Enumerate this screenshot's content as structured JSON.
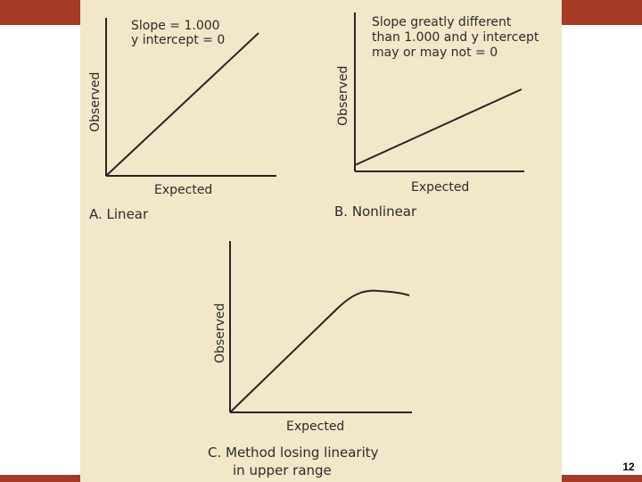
{
  "colors": {
    "accent": "#a53a25",
    "paper": "#f2e7c9",
    "ink": "#262626"
  },
  "page": {
    "number": "12"
  },
  "panels": [
    {
      "id": "A",
      "note_lines": [
        "Slope = 1.000",
        "y intercept = 0"
      ],
      "x_label": "Expected",
      "y_label": "Observed",
      "caption": "A.  Linear"
    },
    {
      "id": "B",
      "note_lines": [
        "Slope greatly different",
        "than 1.000 and y intercept",
        "may or may not = 0"
      ],
      "x_label": "Expected",
      "y_label": "Observed",
      "caption": "B.  Nonlinear"
    },
    {
      "id": "C",
      "x_label": "Expected",
      "y_label": "Observed",
      "caption_lines": [
        "C.  Method losing linearity",
        "in upper range"
      ]
    }
  ]
}
